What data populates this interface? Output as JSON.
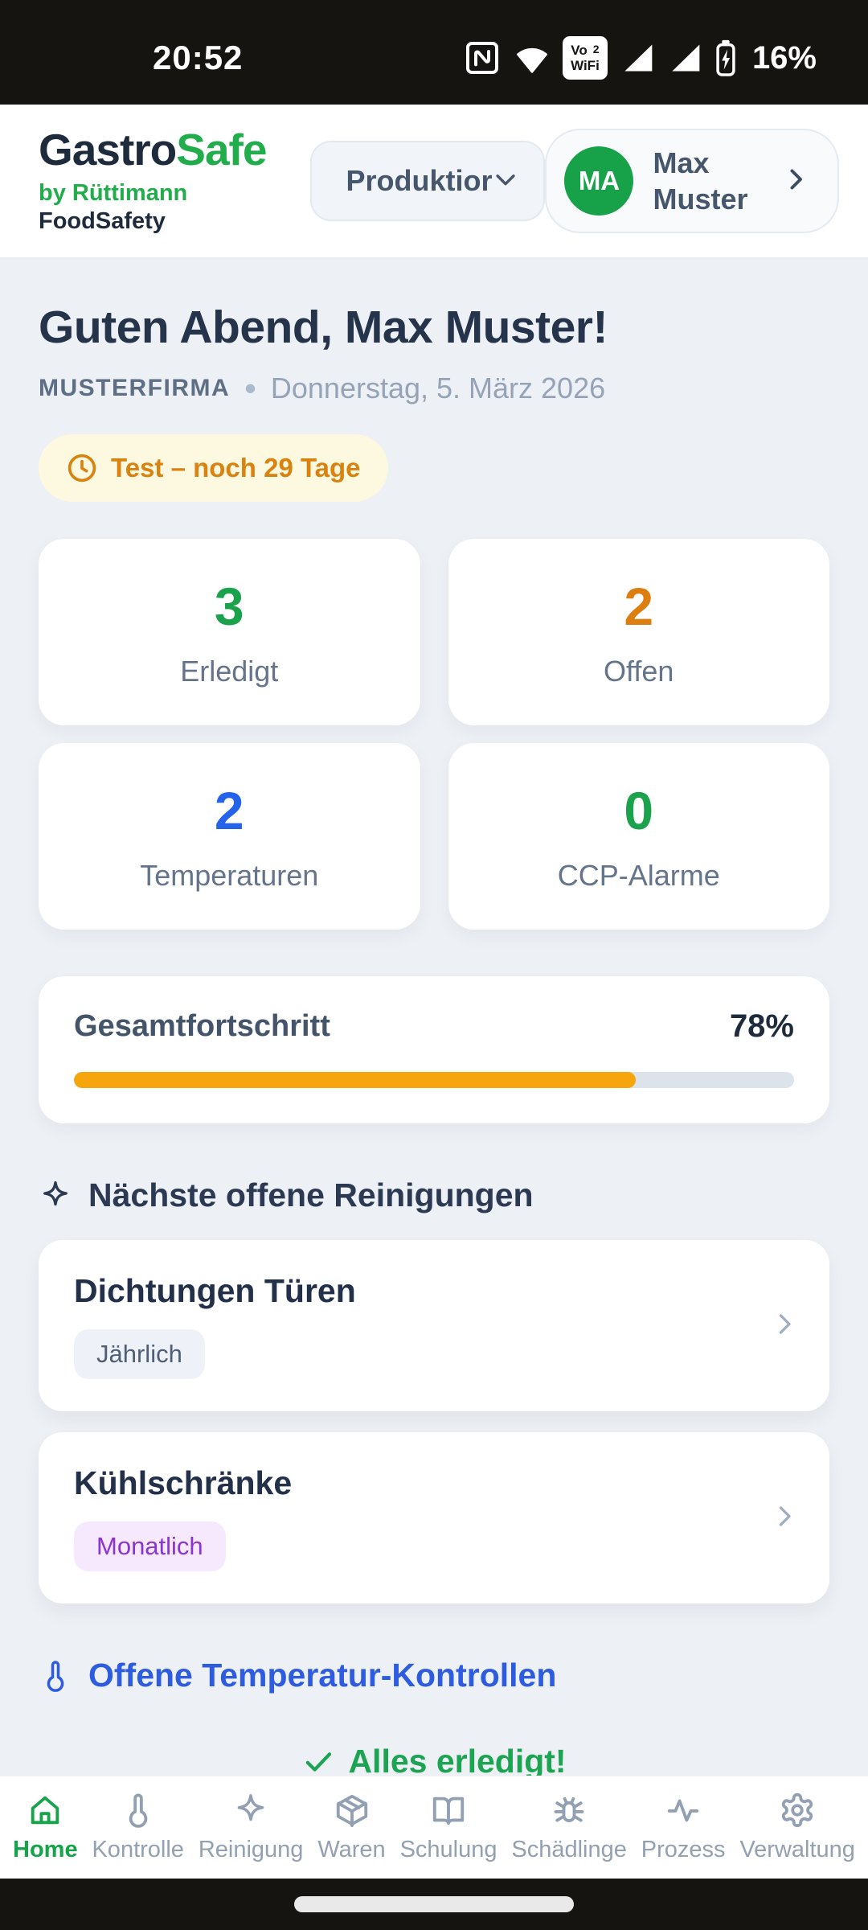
{
  "status_bar": {
    "time": "20:52",
    "battery_percent": "16%",
    "vowifi": {
      "line1": "Vo",
      "sup": "2",
      "line2": "WiFi"
    }
  },
  "header": {
    "logo": {
      "part1": "Gastro",
      "part2": "Safe",
      "byline": "by Rüttimann",
      "subline": "FoodSafety"
    },
    "location_dropdown": {
      "value": "Produktior"
    },
    "profile": {
      "initials": "MA",
      "name": "Max Muster"
    }
  },
  "greeting": {
    "title": "Guten Abend, Max Muster!",
    "company": "MUSTERFIRMA",
    "separator": "•",
    "date": "Donnerstag, 5. März 2026",
    "trial_badge": "Test – noch 29 Tage"
  },
  "stats": [
    {
      "value": "3",
      "label": "Erledigt",
      "color": "#1ba24c"
    },
    {
      "value": "2",
      "label": "Offen",
      "color": "#dd7f10"
    },
    {
      "value": "2",
      "label": "Temperaturen",
      "color": "#2563eb"
    },
    {
      "value": "0",
      "label": "CCP-Alarme",
      "color": "#1ba24c"
    }
  ],
  "progress": {
    "label": "Gesamtfortschritt",
    "value": "78%",
    "percent": 78,
    "bar_color": "#f6a50c"
  },
  "cleanings": {
    "heading": "Nächste offene Reinigungen",
    "items": [
      {
        "title": "Dichtungen Türen",
        "tag": "Jährlich"
      },
      {
        "title": "Kühlschränke",
        "tag": "Monatlich"
      }
    ]
  },
  "temperature": {
    "heading": "Offene Temperatur-Kontrollen",
    "empty_state": "Alles erledigt!"
  },
  "nav": {
    "items": [
      {
        "label": "Home"
      },
      {
        "label": "Kontrolle"
      },
      {
        "label": "Reinigung"
      },
      {
        "label": "Waren"
      },
      {
        "label": "Schulung"
      },
      {
        "label": "Schädlinge"
      },
      {
        "label": "Prozess"
      },
      {
        "label": "Verwaltung"
      }
    ]
  },
  "colors": {
    "brand_green": "#22ad4c",
    "avatar_green": "#17a24a",
    "accent_orange": "#dd7f10",
    "accent_blue": "#2563eb",
    "progress_orange": "#f6a50c",
    "trial_badge_text": "#d9820f",
    "trial_badge_bg": "#fdf8e0",
    "temp_heading_blue": "#2e5ce0",
    "success_green": "#1ca452",
    "nav_inactive": "#92a0b3",
    "page_bg": "#edf1f6"
  }
}
